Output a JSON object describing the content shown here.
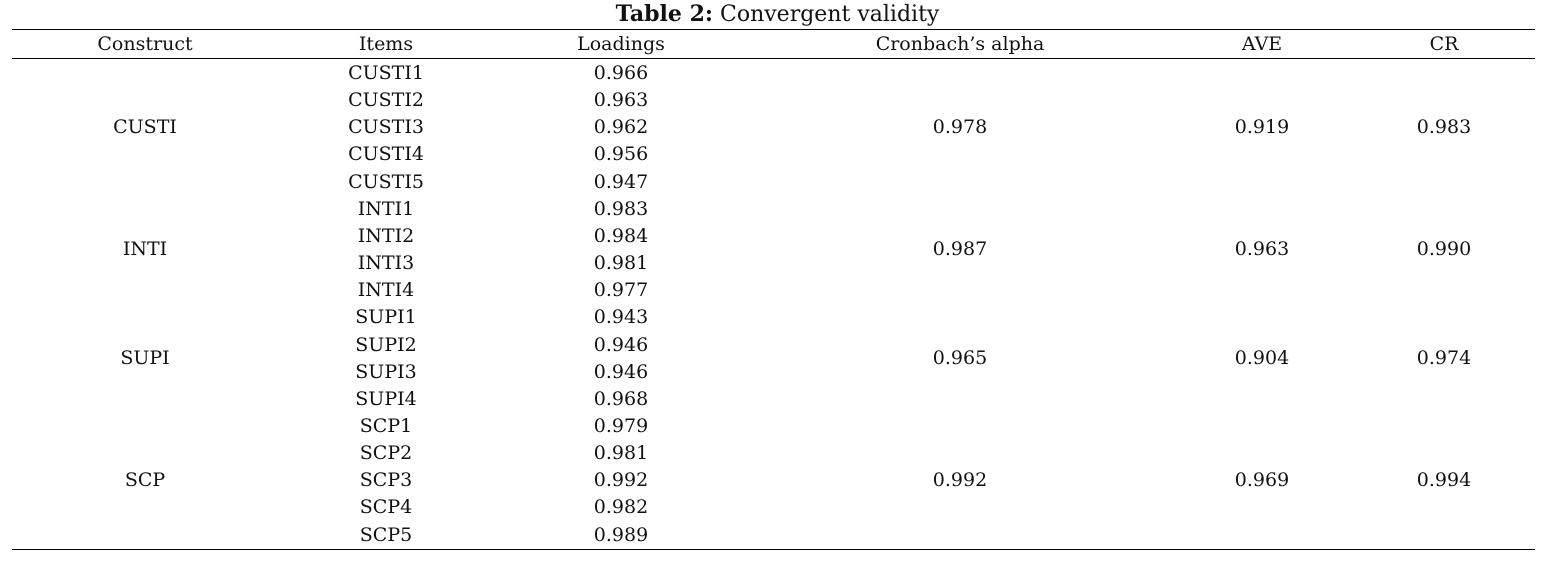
{
  "caption": {
    "label": "Table 2:",
    "title": " Convergent validity"
  },
  "headers": {
    "construct": "Construct",
    "items": "Items",
    "loadings": "Loadings",
    "cronbach": "Cronbach’s alpha",
    "ave": "AVE",
    "cr": "CR"
  },
  "groups": [
    {
      "construct": "CUSTI",
      "cronbach": "0.978",
      "ave": "0.919",
      "cr": "0.983",
      "rows": [
        {
          "item": "CUSTI1",
          "loading": "0.966"
        },
        {
          "item": "CUSTI2",
          "loading": "0.963"
        },
        {
          "item": "CUSTI3",
          "loading": "0.962"
        },
        {
          "item": "CUSTI4",
          "loading": "0.956"
        },
        {
          "item": "CUSTI5",
          "loading": "0.947"
        }
      ]
    },
    {
      "construct": "INTI",
      "cronbach": "0.987",
      "ave": "0.963",
      "cr": "0.990",
      "rows": [
        {
          "item": "INTI1",
          "loading": "0.983"
        },
        {
          "item": "INTI2",
          "loading": "0.984"
        },
        {
          "item": "INTI3",
          "loading": "0.981"
        },
        {
          "item": "INTI4",
          "loading": "0.977"
        }
      ]
    },
    {
      "construct": "SUPI",
      "cronbach": "0.965",
      "ave": "0.904",
      "cr": "0.974",
      "rows": [
        {
          "item": "SUPI1",
          "loading": "0.943"
        },
        {
          "item": "SUPI2",
          "loading": "0.946"
        },
        {
          "item": "SUPI3",
          "loading": "0.946"
        },
        {
          "item": "SUPI4",
          "loading": "0.968"
        }
      ]
    },
    {
      "construct": "SCP",
      "cronbach": "0.992",
      "ave": "0.969",
      "cr": "0.994",
      "rows": [
        {
          "item": "SCP1",
          "loading": "0.979"
        },
        {
          "item": "SCP2",
          "loading": "0.981"
        },
        {
          "item": "SCP3",
          "loading": "0.992"
        },
        {
          "item": "SCP4",
          "loading": "0.982"
        },
        {
          "item": "SCP5",
          "loading": "0.989"
        }
      ]
    }
  ]
}
